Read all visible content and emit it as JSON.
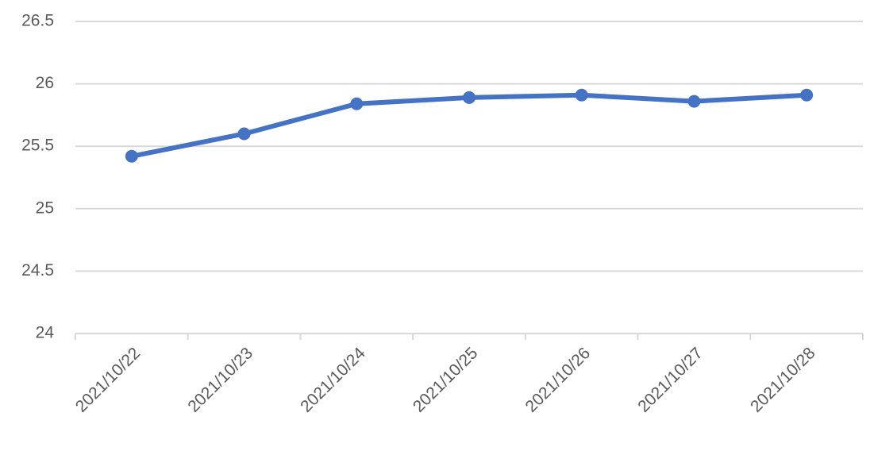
{
  "chart_data": {
    "type": "line",
    "categories": [
      "2021/10/22",
      "2021/10/23",
      "2021/10/24",
      "2021/10/25",
      "2021/10/26",
      "2021/10/27",
      "2021/10/28"
    ],
    "values": [
      25.42,
      25.6,
      25.84,
      25.89,
      25.91,
      25.86,
      25.91
    ],
    "color": "#4472c4",
    "ylim": [
      24,
      26.5
    ],
    "yticks": [
      24,
      24.5,
      25,
      25.5,
      26,
      26.5
    ],
    "grid": true
  }
}
